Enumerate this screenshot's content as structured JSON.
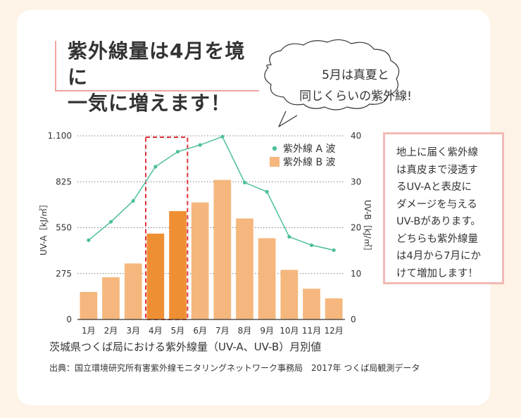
{
  "title": "紫外線量は4月を境に\n一気に増えます！",
  "speech_bubble": "5月は真夏と\n同じくらいの紫外線!",
  "info_box": "地上に届く紫外線\nは真皮まで浸透す\nるUV-Aと表皮に\nダメージを与える\nUV-Bがあります。\nどちらも紫外線量\nは4月から7月にか\nけて増加します！",
  "caption": "茨城県つくば局における紫外線量（UV-A、UV-B）月別値",
  "source": "出典：国立環境研究所有害紫外線モニタリングネットワーク事務局　2017年 つくば局観測データ",
  "colors": {
    "bar": "#f5b77d",
    "bar_highlight": "#ef8f34",
    "line": "#4cbf9a",
    "highlight_box": "#e0333a",
    "accent_pink": "#f2a4a0"
  },
  "chart_data": {
    "type": "bar+line",
    "categories": [
      "1月",
      "2月",
      "3月",
      "4月",
      "5月",
      "6月",
      "7月",
      "8月",
      "9月",
      "10月",
      "11月",
      "12月"
    ],
    "highlight": [
      "4月",
      "5月"
    ],
    "y_left": {
      "label": "UV-A［kJ/㎡］",
      "range": [
        0,
        1100
      ],
      "ticks": [
        "0",
        "275",
        "550",
        "825",
        "1.100"
      ],
      "tick_values": [
        0,
        275,
        550,
        825,
        1100
      ]
    },
    "y_right": {
      "label": "UV-B［kJ/㎡］",
      "range": [
        0,
        40
      ],
      "ticks": [
        "0",
        "10",
        "20",
        "30",
        "40"
      ],
      "tick_values": [
        0,
        10,
        20,
        30,
        40
      ]
    },
    "series": [
      {
        "name": "紫外線 A 波",
        "type": "line",
        "axis": "left",
        "values": [
          475,
          585,
          710,
          915,
          1005,
          1045,
          1095,
          820,
          765,
          495,
          445,
          415
        ]
      },
      {
        "name": "紫外線 B 波",
        "type": "bar",
        "axis": "right",
        "values": [
          6.0,
          9.2,
          12.2,
          18.7,
          23.6,
          25.5,
          30.4,
          22.0,
          17.7,
          10.8,
          6.7,
          4.6
        ]
      }
    ]
  }
}
